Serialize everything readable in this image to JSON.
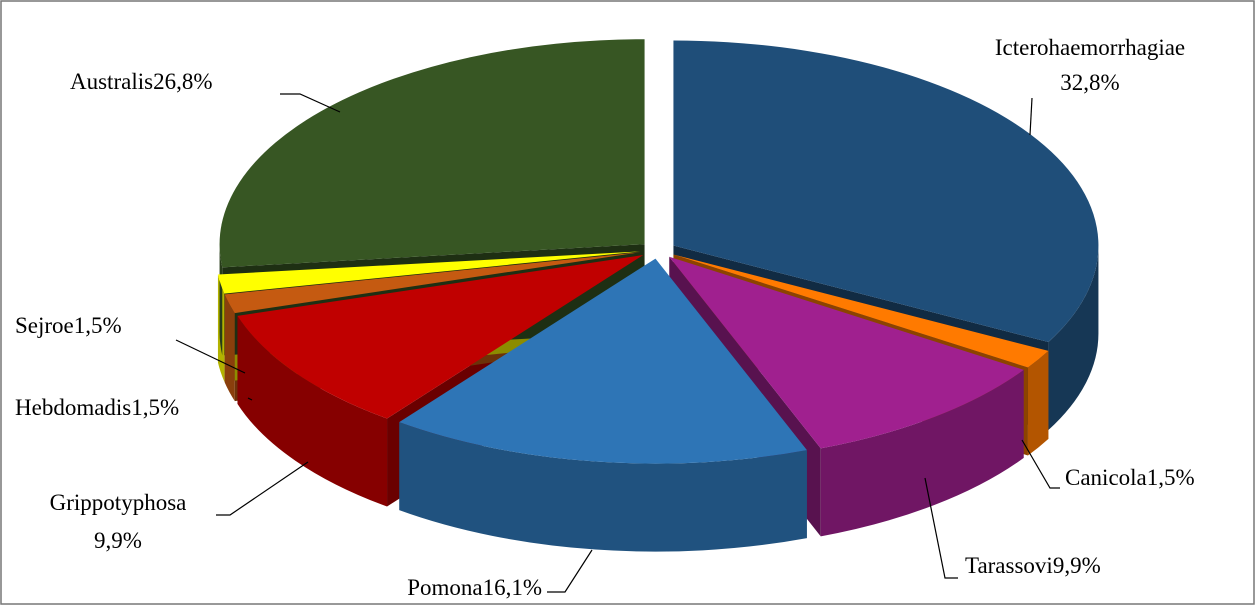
{
  "chart_data": {
    "type": "pie3d",
    "categories": [
      "Icterohaemorrhagiae",
      "Canicola",
      "Tarassovi",
      "Pomona",
      "Grippotyphosa",
      "Hebdomadis",
      "Sejroe",
      "Australis"
    ],
    "values": [
      32.8,
      1.5,
      9.9,
      16.1,
      9.9,
      1.5,
      1.5,
      26.8
    ],
    "value_labels": [
      "32,8%",
      "1,5%",
      "9,9%",
      "16,1%",
      "9,9%",
      "1,5%",
      "1,5%",
      "26,8%"
    ],
    "colors": [
      "#1f4e79",
      "#ff7a00",
      "#a0208f",
      "#2e75b6",
      "#c00000",
      "#c55a11",
      "#ffff00",
      "#375623"
    ]
  }
}
